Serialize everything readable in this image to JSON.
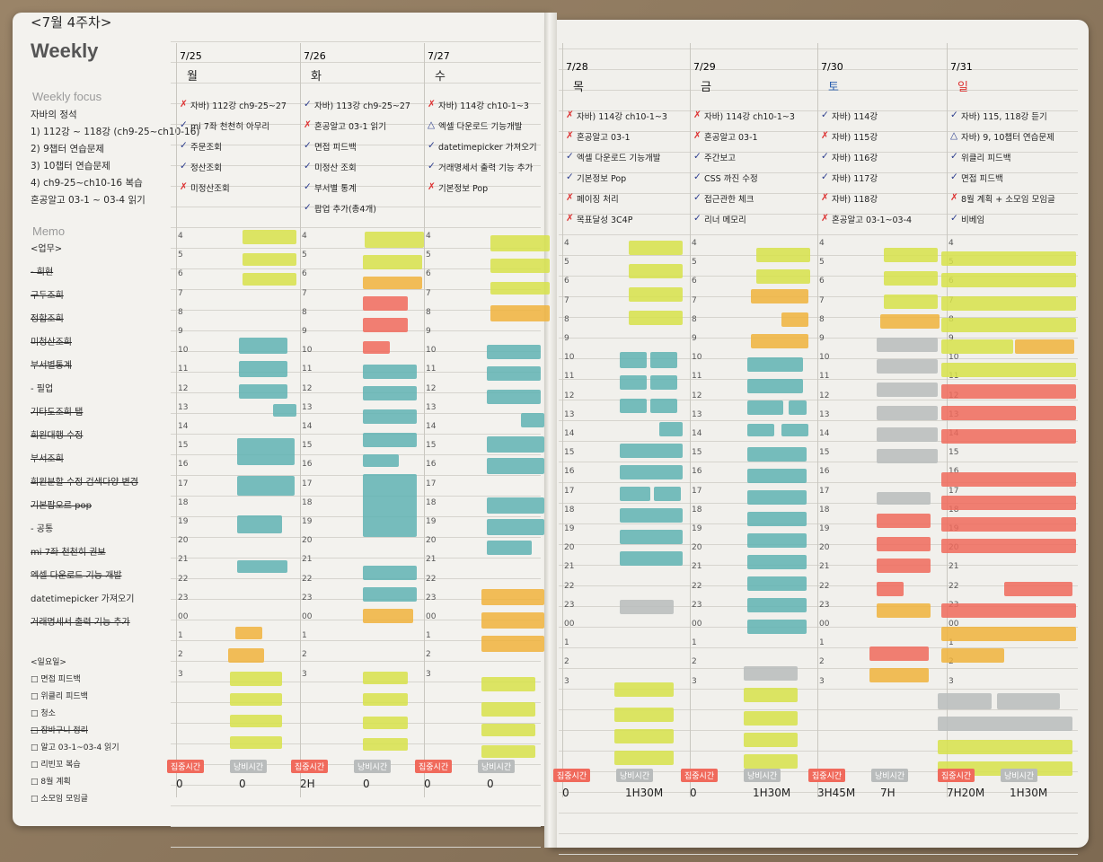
{
  "header": {
    "title": "<7월 4주차>",
    "weekly": "Weekly"
  },
  "sections": {
    "focus": "Weekly focus",
    "memo": "Memo"
  },
  "focus_items": [
    "자바의 정석",
    "1) 112강 ~ 118강 (ch9-25~ch10-16)",
    "2) 9챕터 연습문제",
    "3) 10챕터 연습문제",
    "4) ch9-25~ch10-16 복습",
    "혼공알고 03-1 ~ 03-4 읽기"
  ],
  "memo_items": [
    "<업무>",
    "- 회현",
    "구두조회",
    "정합조회",
    "미청산조회",
    "부서별통계",
    "- 필업",
    "기타도조회 탭",
    "회원대행 수정",
    "부서조회",
    "회원분할 수정 검색다양 변경",
    "기본팝오르 pop",
    "- 공통",
    "mi 7좌 천천히 권보",
    "엑셀 다운로드 기능 개발",
    "datetimepicker 가져오기",
    "거래명세서 출력 기능 추가",
    "<일요일>",
    "□ 면접 피드백",
    "□ 위클리 피드백",
    "□ 청소",
    "□ 장바구니 정리",
    "□ 알고 03-1~03-4 읽기",
    "□ 리빈꼬 복습",
    "□ 8월 계획",
    "□ 소모임 모임글"
  ],
  "days": [
    {
      "date": "7/25",
      "day": "월",
      "tasks": [
        [
          "x",
          "자바) 112강 ch9-25~27"
        ],
        [
          "v",
          "mi 7좌 천천히 아무리"
        ],
        [
          "v",
          "주문조회"
        ],
        [
          "v",
          "정산조회"
        ],
        [
          "x",
          "미정산조회"
        ]
      ]
    },
    {
      "date": "7/26",
      "day": "화",
      "tasks": [
        [
          "v",
          "자바) 113강 ch9-25~27"
        ],
        [
          "x",
          "혼공알고 03-1 읽기"
        ],
        [
          "v",
          "면접 피드백"
        ],
        [
          "v",
          "미정산 조회"
        ],
        [
          "v",
          "부서별 통계"
        ],
        [
          "v",
          "팝업 추가(총4개)"
        ]
      ]
    },
    {
      "date": "7/27",
      "day": "수",
      "tasks": [
        [
          "x",
          "자바) 114강 ch10-1~3"
        ],
        [
          "t",
          "엑셀 다운로드 기능개발"
        ],
        [
          "v",
          "datetimepicker 가져오기"
        ],
        [
          "v",
          "거래명세서 출력 기능 추가"
        ],
        [
          "x",
          "기본정보 Pop"
        ]
      ]
    },
    {
      "date": "7/28",
      "day": "목",
      "tasks": [
        [
          "x",
          "자바) 114강 ch10-1~3"
        ],
        [
          "x",
          "혼공알고 03-1"
        ],
        [
          "v",
          "엑셀 다운로드 기능개발"
        ],
        [
          "v",
          "기본정보 Pop"
        ],
        [
          "x",
          "페이징 처리"
        ],
        [
          "x",
          "목표달성 3C4P"
        ]
      ]
    },
    {
      "date": "7/29",
      "day": "금",
      "tasks": [
        [
          "x",
          "자바) 114강 ch10-1~3"
        ],
        [
          "x",
          "혼공알고 03-1"
        ],
        [
          "v",
          "주간보고"
        ],
        [
          "v",
          "CSS 까진 수정"
        ],
        [
          "v",
          "접근관한 체크"
        ],
        [
          "v",
          "리너 메모리"
        ]
      ]
    },
    {
      "date": "7/30",
      "day": "토",
      "tasks": [
        [
          "v",
          "자바) 114강"
        ],
        [
          "x",
          "자바) 115강"
        ],
        [
          "v",
          "자바) 116강"
        ],
        [
          "v",
          "자바) 117강"
        ],
        [
          "x",
          "자바) 118강"
        ],
        [
          "x",
          "혼공알고 03-1~03-4"
        ]
      ]
    },
    {
      "date": "7/31",
      "day": "일",
      "tasks": [
        [
          "v",
          "자바) 115, 118강 듣기"
        ],
        [
          "t",
          "자바) 9, 10챕터 연습문제"
        ],
        [
          "v",
          "위클리 피드백"
        ],
        [
          "v",
          "면접 피드백"
        ],
        [
          "x",
          "8월 계획 + 소모임 모임글"
        ],
        [
          "v",
          "비베임"
        ]
      ]
    }
  ],
  "hours": [
    "4",
    "5",
    "6",
    "7",
    "8",
    "9",
    "10",
    "11",
    "12",
    "13",
    "14",
    "15",
    "16",
    "17",
    "18",
    "19",
    "20",
    "21",
    "22",
    "23",
    "00",
    "1",
    "2",
    "3"
  ],
  "footer_labels": {
    "focus": "집중시간",
    "waste": "낭비시간"
  },
  "footer_values": [
    [
      "0",
      "0"
    ],
    [
      "2H",
      "0"
    ],
    [
      "0",
      "0"
    ],
    [
      "0",
      "1H30M"
    ],
    [
      "0",
      "1H30M"
    ],
    [
      "3H45M",
      "7H"
    ],
    [
      "7H20M",
      "1H30M"
    ]
  ],
  "colors": {
    "yellow": "#d7e24a",
    "teal": "#5fb3b3",
    "orange": "#f0b33c",
    "red": "#f06a5c",
    "gray": "#b9bcbc"
  }
}
